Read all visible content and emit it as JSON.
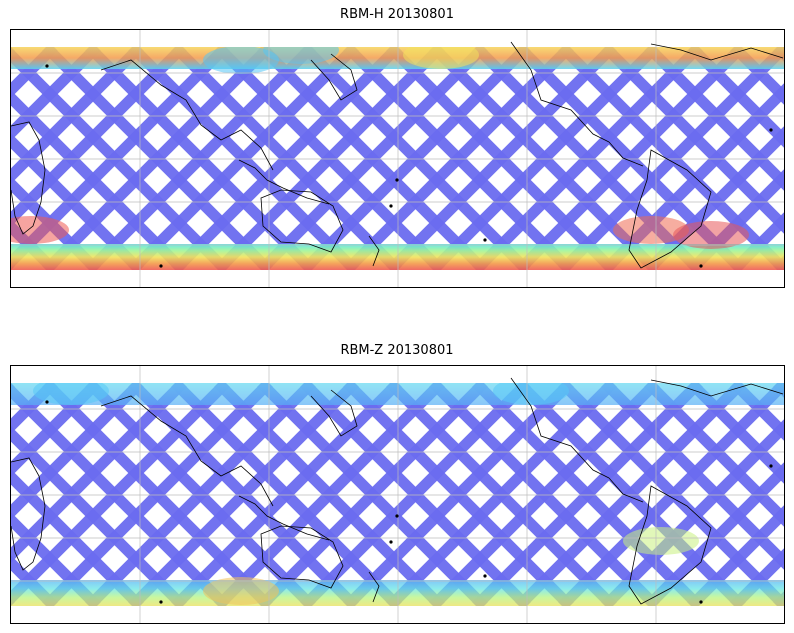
{
  "figure": {
    "panels": [
      {
        "title": "RBM-H 20130801",
        "swath_color": "#6a6cef",
        "south_band": [
          "#ef5a52",
          "#f39a4a",
          "#f2e35c",
          "#9ff59a",
          "#59e4e6"
        ],
        "north_band": [
          "#f6d45a",
          "#f49a4c",
          "#5ad2f0"
        ],
        "intensity": "high"
      },
      {
        "title": "RBM-Z 20130801",
        "swath_color": "#6a6cef",
        "south_band": [
          "#e9e15a",
          "#b7f57f",
          "#64e4e6",
          "#58b4f6"
        ],
        "north_band": [
          "#62d8f0",
          "#58aef6"
        ],
        "intensity": "low"
      }
    ],
    "map_projection": "Plate Carree, centered 180°",
    "gridlines": true,
    "coastlines": true
  }
}
